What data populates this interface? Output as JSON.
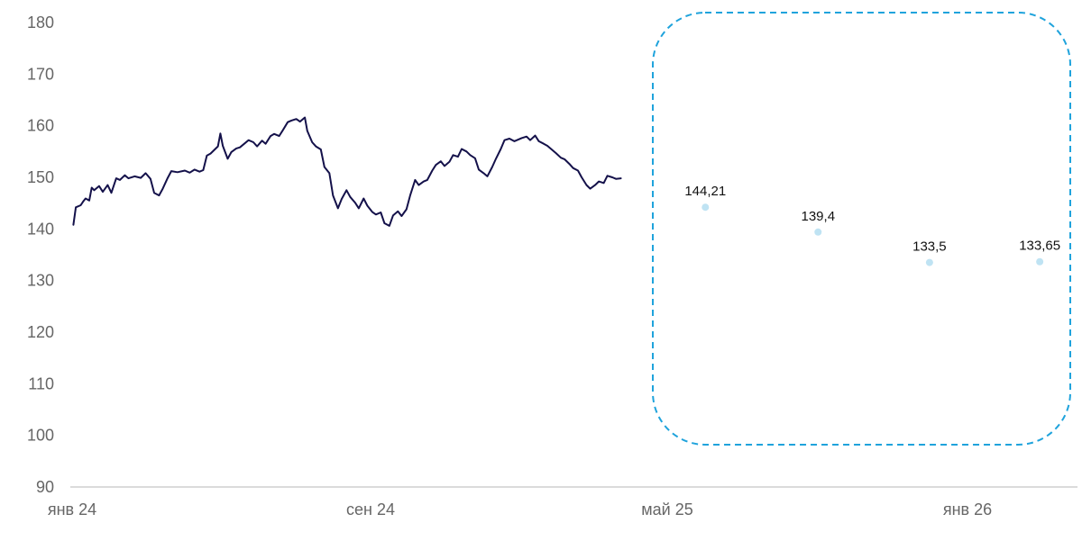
{
  "chart_data": {
    "type": "line",
    "title": "",
    "xlabel": "",
    "ylabel": "",
    "ylim": [
      90,
      180
    ],
    "yticks": [
      90,
      100,
      110,
      120,
      130,
      140,
      150,
      160,
      170,
      180
    ],
    "x_tick_labels": [
      "янв 24",
      "сен 24",
      "май 25",
      "янв 26"
    ],
    "grid": false,
    "legend": "none",
    "series": [
      {
        "type": "line",
        "color": "#14114a",
        "points": [
          [
            "2024-01-02",
            140.8
          ],
          [
            "2024-01-04",
            144.2
          ],
          [
            "2024-01-08",
            144.6
          ],
          [
            "2024-01-10",
            145.3
          ],
          [
            "2024-01-12",
            145.9
          ],
          [
            "2024-01-15",
            145.5
          ],
          [
            "2024-01-17",
            148.0
          ],
          [
            "2024-01-19",
            147.5
          ],
          [
            "2024-01-23",
            148.3
          ],
          [
            "2024-01-26",
            147.2
          ],
          [
            "2024-01-30",
            148.5
          ],
          [
            "2024-02-02",
            147.0
          ],
          [
            "2024-02-06",
            149.8
          ],
          [
            "2024-02-09",
            149.5
          ],
          [
            "2024-02-13",
            150.4
          ],
          [
            "2024-02-16",
            149.8
          ],
          [
            "2024-02-21",
            150.2
          ],
          [
            "2024-02-26",
            149.9
          ],
          [
            "2024-03-01",
            150.8
          ],
          [
            "2024-03-05",
            149.7
          ],
          [
            "2024-03-08",
            147.0
          ],
          [
            "2024-03-12",
            146.5
          ],
          [
            "2024-03-15",
            147.8
          ],
          [
            "2024-03-19",
            149.9
          ],
          [
            "2024-03-22",
            151.2
          ],
          [
            "2024-03-27",
            151.0
          ],
          [
            "2024-04-02",
            151.3
          ],
          [
            "2024-04-06",
            150.9
          ],
          [
            "2024-04-10",
            151.5
          ],
          [
            "2024-04-14",
            151.1
          ],
          [
            "2024-04-17",
            151.4
          ],
          [
            "2024-04-20",
            154.2
          ],
          [
            "2024-04-23",
            154.6
          ],
          [
            "2024-04-26",
            155.3
          ],
          [
            "2024-04-29",
            156.0
          ],
          [
            "2024-05-01",
            158.5
          ],
          [
            "2024-05-03",
            156.1
          ],
          [
            "2024-05-07",
            153.6
          ],
          [
            "2024-05-10",
            154.9
          ],
          [
            "2024-05-14",
            155.6
          ],
          [
            "2024-05-17",
            155.8
          ],
          [
            "2024-05-21",
            156.6
          ],
          [
            "2024-05-24",
            157.2
          ],
          [
            "2024-05-28",
            156.8
          ],
          [
            "2024-05-31",
            156.0
          ],
          [
            "2024-06-04",
            157.1
          ],
          [
            "2024-06-07",
            156.5
          ],
          [
            "2024-06-11",
            158.0
          ],
          [
            "2024-06-14",
            158.4
          ],
          [
            "2024-06-18",
            158.0
          ],
          [
            "2024-06-21",
            159.1
          ],
          [
            "2024-06-25",
            160.7
          ],
          [
            "2024-06-28",
            161.0
          ],
          [
            "2024-07-02",
            161.3
          ],
          [
            "2024-07-05",
            160.8
          ],
          [
            "2024-07-09",
            161.6
          ],
          [
            "2024-07-11",
            159.0
          ],
          [
            "2024-07-15",
            156.8
          ],
          [
            "2024-07-18",
            156.0
          ],
          [
            "2024-07-22",
            155.4
          ],
          [
            "2024-07-25",
            152.0
          ],
          [
            "2024-07-29",
            150.8
          ],
          [
            "2024-08-01",
            146.5
          ],
          [
            "2024-08-05",
            144.0
          ],
          [
            "2024-08-08",
            145.8
          ],
          [
            "2024-08-12",
            147.5
          ],
          [
            "2024-08-15",
            146.2
          ],
          [
            "2024-08-19",
            145.1
          ],
          [
            "2024-08-22",
            144.0
          ],
          [
            "2024-08-26",
            145.9
          ],
          [
            "2024-08-29",
            144.5
          ],
          [
            "2024-09-02",
            143.3
          ],
          [
            "2024-09-05",
            142.8
          ],
          [
            "2024-09-09",
            143.2
          ],
          [
            "2024-09-12",
            141.1
          ],
          [
            "2024-09-16",
            140.6
          ],
          [
            "2024-09-19",
            142.6
          ],
          [
            "2024-09-23",
            143.4
          ],
          [
            "2024-09-26",
            142.5
          ],
          [
            "2024-09-30",
            143.8
          ],
          [
            "2024-10-03",
            146.5
          ],
          [
            "2024-10-07",
            149.5
          ],
          [
            "2024-10-10",
            148.5
          ],
          [
            "2024-10-14",
            149.2
          ],
          [
            "2024-10-17",
            149.5
          ],
          [
            "2024-10-21",
            151.3
          ],
          [
            "2024-10-24",
            152.4
          ],
          [
            "2024-10-28",
            153.1
          ],
          [
            "2024-10-31",
            152.2
          ],
          [
            "2024-11-04",
            153.0
          ],
          [
            "2024-11-07",
            154.3
          ],
          [
            "2024-11-11",
            154.0
          ],
          [
            "2024-11-14",
            155.5
          ],
          [
            "2024-11-18",
            155.0
          ],
          [
            "2024-11-21",
            154.3
          ],
          [
            "2024-11-25",
            153.7
          ],
          [
            "2024-11-28",
            151.5
          ],
          [
            "2024-12-02",
            150.8
          ],
          [
            "2024-12-05",
            150.2
          ],
          [
            "2024-12-09",
            152.0
          ],
          [
            "2024-12-12",
            153.6
          ],
          [
            "2024-12-16",
            155.5
          ],
          [
            "2024-12-19",
            157.2
          ],
          [
            "2024-12-23",
            157.5
          ],
          [
            "2024-12-27",
            157.0
          ],
          [
            "2025-01-02",
            157.6
          ],
          [
            "2025-01-06",
            157.9
          ],
          [
            "2025-01-09",
            157.2
          ],
          [
            "2025-01-13",
            158.1
          ],
          [
            "2025-01-16",
            157.0
          ],
          [
            "2025-01-20",
            156.5
          ],
          [
            "2025-01-23",
            156.1
          ],
          [
            "2025-01-27",
            155.3
          ],
          [
            "2025-01-30",
            154.7
          ],
          [
            "2025-02-03",
            153.8
          ],
          [
            "2025-02-06",
            153.5
          ],
          [
            "2025-02-10",
            152.6
          ],
          [
            "2025-02-13",
            151.8
          ],
          [
            "2025-02-17",
            151.3
          ],
          [
            "2025-02-20",
            150.0
          ],
          [
            "2025-02-24",
            148.5
          ],
          [
            "2025-02-27",
            147.8
          ],
          [
            "2025-03-03",
            148.5
          ],
          [
            "2025-03-06",
            149.2
          ],
          [
            "2025-03-10",
            148.9
          ],
          [
            "2025-03-13",
            150.3
          ],
          [
            "2025-03-17",
            150.0
          ],
          [
            "2025-03-20",
            149.7
          ],
          [
            "2025-03-24",
            149.8
          ]
        ]
      },
      {
        "type": "scatter",
        "color": "#bfe3f3",
        "points": [
          [
            "2025-06-01",
            144.21
          ],
          [
            "2025-09-01",
            139.4
          ],
          [
            "2025-12-01",
            133.5
          ],
          [
            "2026-03-01",
            133.65
          ]
        ],
        "labels": [
          "144,21",
          "139,4",
          "133,5",
          "133,65"
        ]
      }
    ],
    "highlight_box": {
      "style": "dashed",
      "color": "#1fa3dc"
    }
  }
}
